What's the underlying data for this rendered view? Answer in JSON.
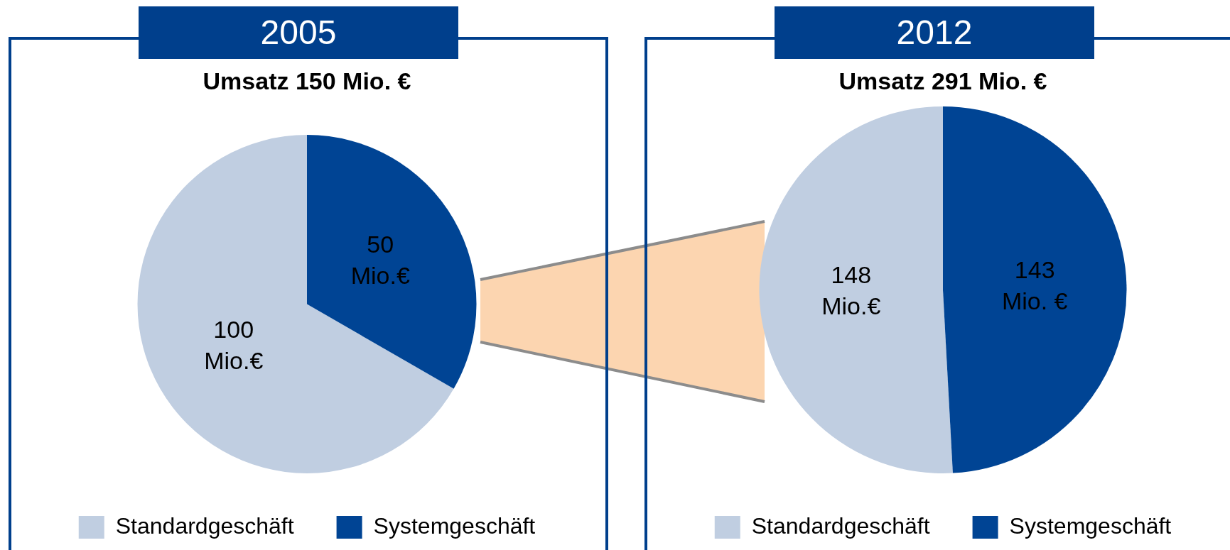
{
  "chart_data": [
    {
      "type": "pie",
      "title": "2005",
      "subtitle": "Umsatz 150 Mio. €",
      "categories": [
        "Standardgeschäft",
        "Systemgeschäft"
      ],
      "values": [
        100,
        50
      ],
      "colors": [
        "#c0cee1",
        "#004494"
      ],
      "value_labels": [
        "100 Mio.€",
        "50 Mio.€"
      ],
      "legend": "bottom"
    },
    {
      "type": "pie",
      "title": "2012",
      "subtitle": "Umsatz 291 Mio. €",
      "categories": [
        "Standardgeschäft",
        "Systemgeschäft"
      ],
      "values": [
        148,
        143
      ],
      "colors": [
        "#c0cee1",
        "#004494"
      ],
      "value_labels": [
        "148 Mio.€",
        "143 Mio. €"
      ],
      "legend": "bottom"
    }
  ]
}
